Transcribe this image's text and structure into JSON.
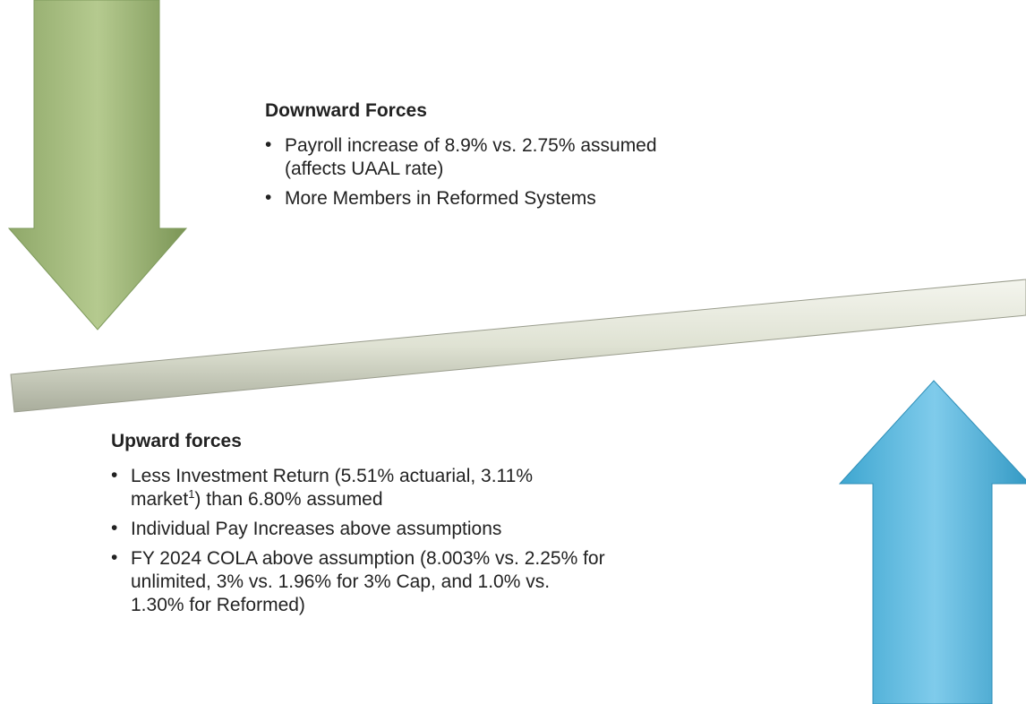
{
  "downward": {
    "heading": "Downward Forces",
    "bullets": [
      {
        "lines": [
          "Payroll increase of 8.9% vs. 2.75% assumed",
          "(affects UAAL rate)"
        ]
      },
      {
        "lines": [
          "More Members in Reformed Systems"
        ]
      }
    ]
  },
  "upward": {
    "heading": "Upward forces",
    "bullets": [
      {
        "lines": [
          "Less Investment Return (5.51% actuarial, 3.11%",
          {
            "text": "market",
            "sup": "1",
            "after": ") than 6.80% assumed"
          }
        ]
      },
      {
        "lines": [
          "Individual Pay Increases above assumptions"
        ]
      },
      {
        "lines": [
          "FY 2024 COLA above assumption (8.003% vs. 2.25% for",
          "unlimited, 3% vs. 1.96% for 3% Cap, and 1.0% vs.",
          "1.30% for Reformed)"
        ]
      }
    ]
  },
  "bullet_symbol": "•"
}
